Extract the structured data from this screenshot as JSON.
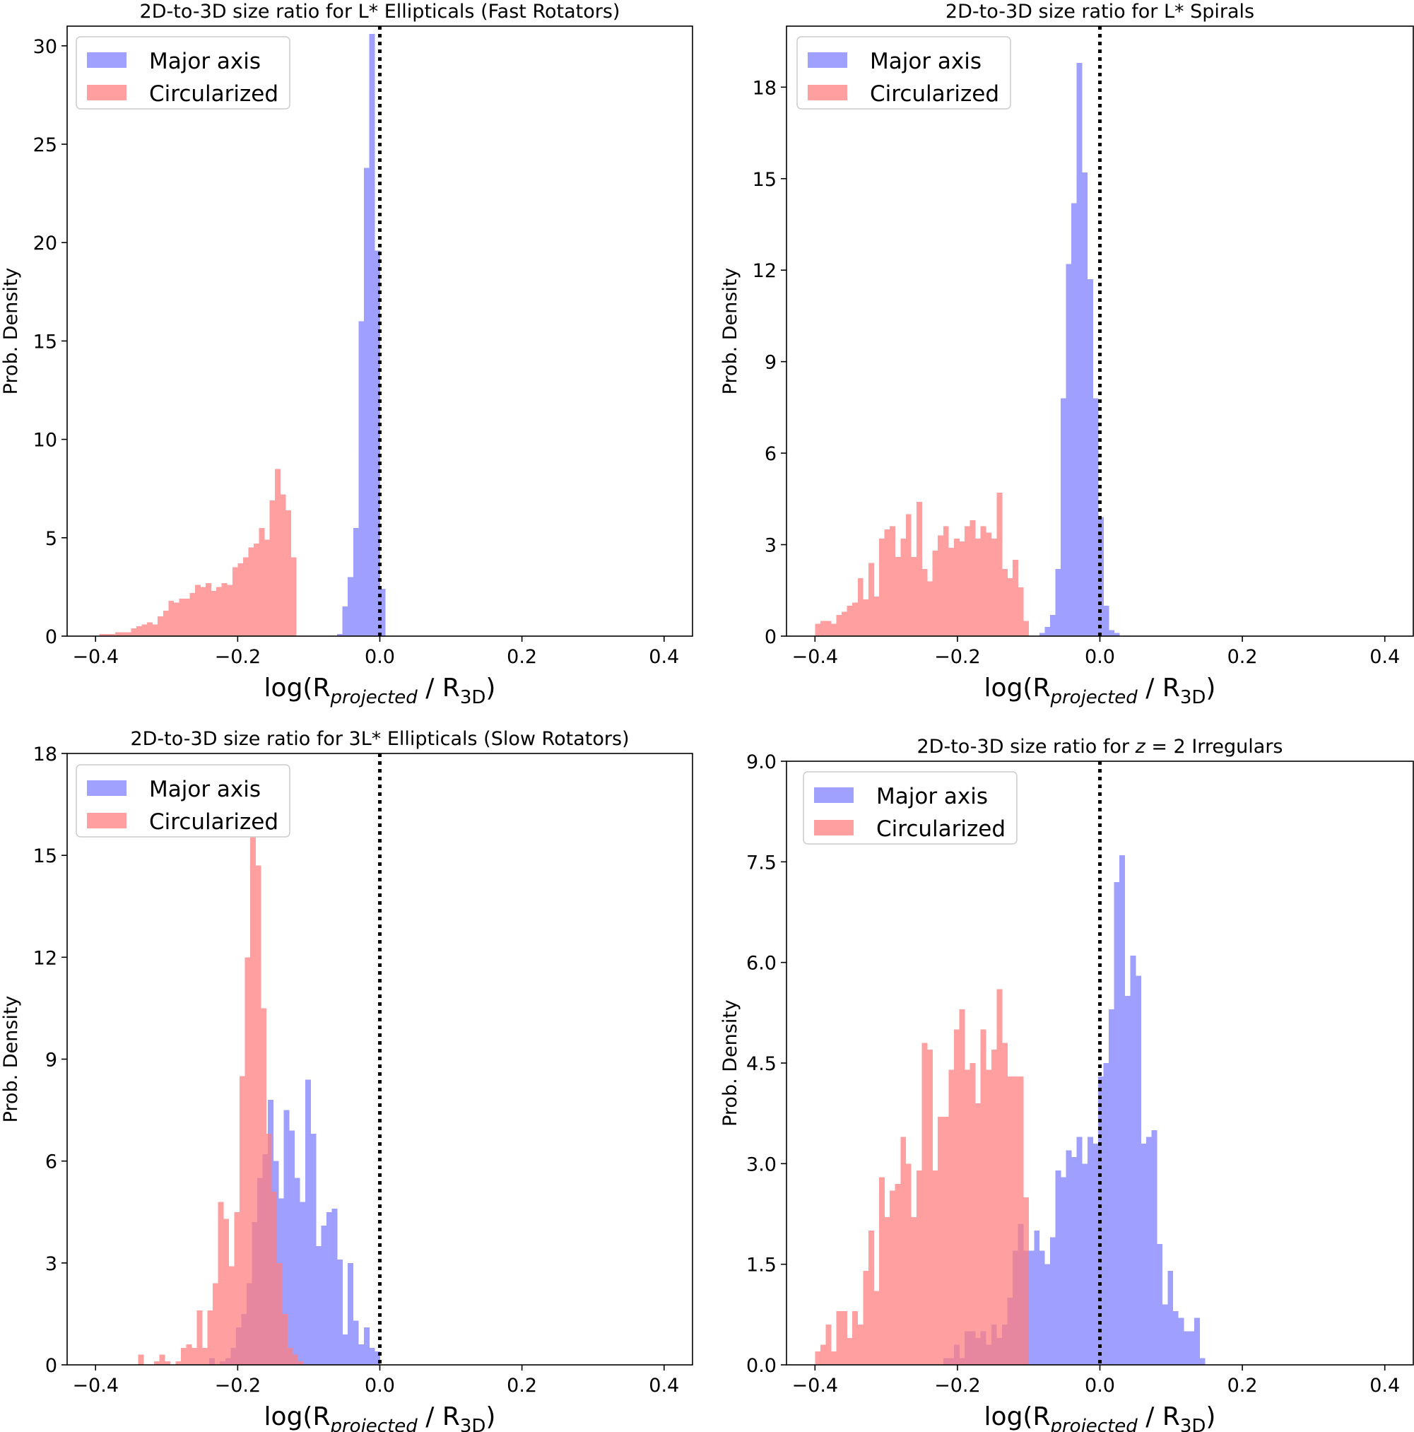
{
  "colors": {
    "major": "#8080ff",
    "circ": "#ff7f7f",
    "alpha": 0.75,
    "axis": "#000000"
  },
  "chart_data": [
    {
      "type": "histogram",
      "title": "2D-to-3D size ratio for L* Ellipticals (Fast Rotators)",
      "ylabel": "Prob. Density",
      "xlabel": {
        "pre": "log(R",
        "sub1": "projected",
        "mid": " / R",
        "sub2": "3D",
        "post": ")"
      },
      "xlim": [
        -0.44,
        0.44
      ],
      "ylim": [
        0,
        31
      ],
      "xticks": [
        -0.4,
        -0.2,
        0.0,
        0.2,
        0.4
      ],
      "xtick_labels": [
        "−0.4",
        "−0.2",
        "0.0",
        "0.2",
        "0.4"
      ],
      "yticks": [
        0,
        5,
        10,
        15,
        20,
        25,
        30
      ],
      "ytick_labels": [
        "0",
        "5",
        "10",
        "15",
        "20",
        "25",
        "30"
      ],
      "vline": 0.0,
      "legend": [
        "Major axis",
        "Circularized"
      ],
      "series": [
        {
          "name": "Major axis",
          "color_key": "major",
          "bin_start": -0.06,
          "bin_width": 0.0075,
          "values": [
            0.1,
            1.5,
            3.0,
            5.5,
            16.0,
            23.8,
            30.6,
            19.6,
            2.4
          ]
        },
        {
          "name": "Circularized",
          "color_key": "circ",
          "bin_start": -0.395,
          "bin_width": 0.0075,
          "values": [
            0.1,
            0.1,
            0.1,
            0.2,
            0.2,
            0.2,
            0.4,
            0.5,
            0.6,
            0.7,
            0.6,
            1.0,
            1.3,
            1.8,
            1.7,
            1.9,
            1.9,
            2.2,
            2.6,
            2.5,
            2.7,
            2.3,
            2.5,
            2.7,
            2.6,
            3.5,
            3.7,
            4.0,
            4.5,
            4.7,
            5.5,
            4.9,
            6.9,
            8.5,
            7.2,
            6.4,
            4.0
          ]
        }
      ]
    },
    {
      "type": "histogram",
      "title": "2D-to-3D size ratio for L* Spirals",
      "ylabel": "Prob. Density",
      "xlabel": {
        "pre": "log(R",
        "sub1": "projected",
        "mid": " / R",
        "sub2": "3D",
        "post": ")"
      },
      "xlim": [
        -0.44,
        0.44
      ],
      "ylim": [
        0,
        20
      ],
      "xticks": [
        -0.4,
        -0.2,
        0.0,
        0.2,
        0.4
      ],
      "xtick_labels": [
        "−0.4",
        "−0.2",
        "0.0",
        "0.2",
        "0.4"
      ],
      "yticks": [
        0,
        3,
        6,
        9,
        12,
        15,
        18
      ],
      "ytick_labels": [
        "0",
        "3",
        "6",
        "9",
        "12",
        "15",
        "18"
      ],
      "vline": 0.0,
      "legend": [
        "Major axis",
        "Circularized"
      ],
      "series": [
        {
          "name": "Major axis",
          "color_key": "major",
          "bin_start": -0.085,
          "bin_width": 0.0075,
          "values": [
            0.1,
            0.3,
            0.7,
            2.2,
            7.8,
            12.2,
            14.2,
            18.8,
            15.2,
            11.7,
            7.8,
            3.9,
            1.0,
            0.2,
            0.1
          ]
        },
        {
          "name": "Circularized",
          "color_key": "circ",
          "bin_start": -0.4,
          "bin_width": 0.0075,
          "values": [
            0.4,
            0.5,
            0.5,
            0.4,
            0.7,
            0.8,
            1.0,
            1.1,
            1.9,
            1.2,
            2.4,
            1.3,
            3.2,
            3.5,
            3.6,
            2.6,
            3.2,
            4.0,
            2.6,
            4.4,
            2.2,
            1.8,
            2.8,
            3.3,
            3.6,
            2.9,
            3.2,
            3.1,
            3.6,
            3.8,
            3.2,
            3.6,
            3.4,
            3.2,
            4.7,
            2.2,
            1.9,
            2.5,
            1.6,
            0.5
          ]
        }
      ]
    },
    {
      "type": "histogram",
      "title": "2D-to-3D size ratio for 3L* Ellipticals (Slow Rotators)",
      "ylabel": "Prob. Density",
      "xlabel": {
        "pre": "log(R",
        "sub1": "projected",
        "mid": " / R",
        "sub2": "3D",
        "post": ")"
      },
      "xlim": [
        -0.44,
        0.44
      ],
      "ylim": [
        0,
        18
      ],
      "xticks": [
        -0.4,
        -0.2,
        0.0,
        0.2,
        0.4
      ],
      "xtick_labels": [
        "−0.4",
        "−0.2",
        "0.0",
        "0.2",
        "0.4"
      ],
      "yticks": [
        0,
        3,
        6,
        9,
        12,
        15,
        18
      ],
      "ytick_labels": [
        "0",
        "3",
        "6",
        "9",
        "12",
        "15",
        "18"
      ],
      "vline": 0.0,
      "legend": [
        "Major axis",
        "Circularized"
      ],
      "series": [
        {
          "name": "Major axis",
          "color_key": "major",
          "bin_start": -0.24,
          "bin_width": 0.0075,
          "values": [
            0.2,
            0,
            0.1,
            0.2,
            0.5,
            1.1,
            1.5,
            2.4,
            4.2,
            5.5,
            6.2,
            7.8,
            6.0,
            4.9,
            7.5,
            6.9,
            5.5,
            4.8,
            8.4,
            6.8,
            3.5,
            4.1,
            4.5,
            4.6,
            3.1,
            0.9,
            3.0,
            1.3,
            0.6,
            1.1,
            0.5,
            0.4
          ]
        },
        {
          "name": "Circularized",
          "color_key": "circ",
          "bin_start": -0.34,
          "bin_width": 0.0075,
          "values": [
            0.3,
            0,
            0,
            0.1,
            0.3,
            0.1,
            0,
            0.1,
            0.5,
            0.6,
            0.5,
            1.6,
            0.5,
            1.6,
            2.4,
            4.8,
            4.3,
            2.9,
            4.5,
            8.5,
            12.0,
            16.4,
            14.7,
            10.5,
            6.8,
            5.1,
            3.0,
            1.5,
            0.5,
            0.3,
            0.1
          ]
        }
      ]
    },
    {
      "type": "histogram",
      "title": {
        "pre": "2D-to-3D size ratio for ",
        "italic": "z",
        "post": " = 2 Irregulars"
      },
      "ylabel": "Prob. Density",
      "xlabel": {
        "pre": "log(R",
        "sub1": "projected",
        "mid": " / R",
        "sub2": "3D",
        "post": ")"
      },
      "xlim": [
        -0.44,
        0.44
      ],
      "ylim": [
        0,
        9
      ],
      "xticks": [
        -0.4,
        -0.2,
        0.0,
        0.2,
        0.4
      ],
      "xtick_labels": [
        "−0.4",
        "−0.2",
        "0.0",
        "0.2",
        "0.4"
      ],
      "yticks": [
        0,
        1.5,
        3,
        4.5,
        6,
        7.5,
        9
      ],
      "ytick_labels": [
        "0.0",
        "1.5",
        "3.0",
        "4.5",
        "6.0",
        "7.5",
        "9.0"
      ],
      "vline": 0.0,
      "legend": [
        "Major axis",
        "Circularized"
      ],
      "series": [
        {
          "name": "Major axis",
          "color_key": "major",
          "bin_start": -0.22,
          "bin_width": 0.0075,
          "values": [
            0.1,
            0.1,
            0.3,
            0.1,
            0.5,
            0.5,
            0.4,
            0.5,
            0.3,
            0.6,
            0.4,
            0.6,
            1.0,
            1.7,
            2.1,
            1.7,
            1.7,
            2.0,
            1.7,
            1.5,
            1.9,
            2.9,
            2.8,
            3.2,
            3.1,
            3.4,
            3.0,
            3.4,
            3.3,
            4.3,
            4.5,
            5.3,
            7.2,
            7.6,
            5.5,
            6.1,
            5.8,
            3.3,
            3.4,
            3.5,
            1.8,
            0.9,
            1.4,
            0.8,
            0.7,
            0.5,
            0.5,
            0.7,
            0.1
          ]
        },
        {
          "name": "Circularized",
          "color_key": "circ",
          "bin_start": -0.4,
          "bin_width": 0.0075,
          "values": [
            0.2,
            0.3,
            0.6,
            0.2,
            0.8,
            0.8,
            0.4,
            0.8,
            0.6,
            1.4,
            2.0,
            1.1,
            2.8,
            2.2,
            2.6,
            2.7,
            3.4,
            3.0,
            2.2,
            2.9,
            4.8,
            4.7,
            2.9,
            3.7,
            3.7,
            4.4,
            5.0,
            5.3,
            4.4,
            4.5,
            3.9,
            5.0,
            4.4,
            4.7,
            5.6,
            4.8,
            4.3,
            4.3,
            4.3,
            2.5
          ]
        }
      ]
    }
  ]
}
